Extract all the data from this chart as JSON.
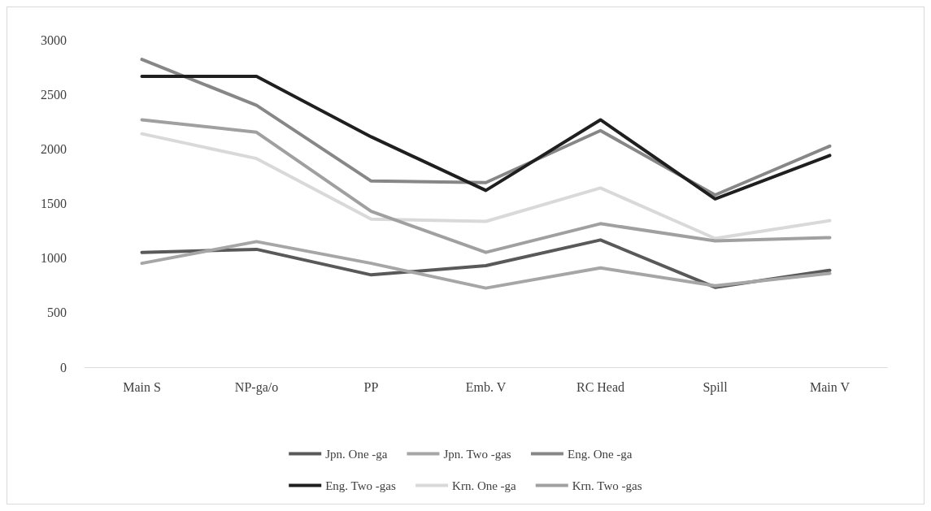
{
  "chart_data": {
    "type": "line",
    "categories": [
      "Main S",
      "NP-ga/o",
      "PP",
      "Emb. V",
      "RC Head",
      "Spill",
      "Main V"
    ],
    "series": [
      {
        "name": "Jpn. One -ga",
        "color": "#595959",
        "values": [
          1052,
          1080,
          846,
          931,
          1166,
          732,
          888
        ]
      },
      {
        "name": "Jpn. Two -gas",
        "color": "#a6a6a6",
        "values": [
          952,
          1151,
          952,
          725,
          910,
          746,
          860
        ]
      },
      {
        "name": "Eng. One -ga",
        "color": "#878787",
        "values": [
          2820,
          2400,
          1706,
          1692,
          2168,
          1578,
          2026
        ]
      },
      {
        "name": "Eng. Two -gas",
        "color": "#1f1f1f",
        "values": [
          2665,
          2665,
          2111,
          1620,
          2267,
          1542,
          1940
        ]
      },
      {
        "name": "Krn. One -ga",
        "color": "#d9d9d9",
        "values": [
          2139,
          1912,
          1357,
          1336,
          1642,
          1180,
          1343
        ]
      },
      {
        "name": "Krn. Two -gas",
        "color": "#a0a0a0",
        "values": [
          2267,
          2153,
          1428,
          1052,
          1315,
          1158,
          1187
        ]
      }
    ],
    "ylim": [
      0,
      3000
    ],
    "yticks": [
      0,
      500,
      1000,
      1500,
      2000,
      2500,
      3000
    ],
    "grid": false,
    "legend": "bottom",
    "marker": "none",
    "line_style": "solid"
  }
}
